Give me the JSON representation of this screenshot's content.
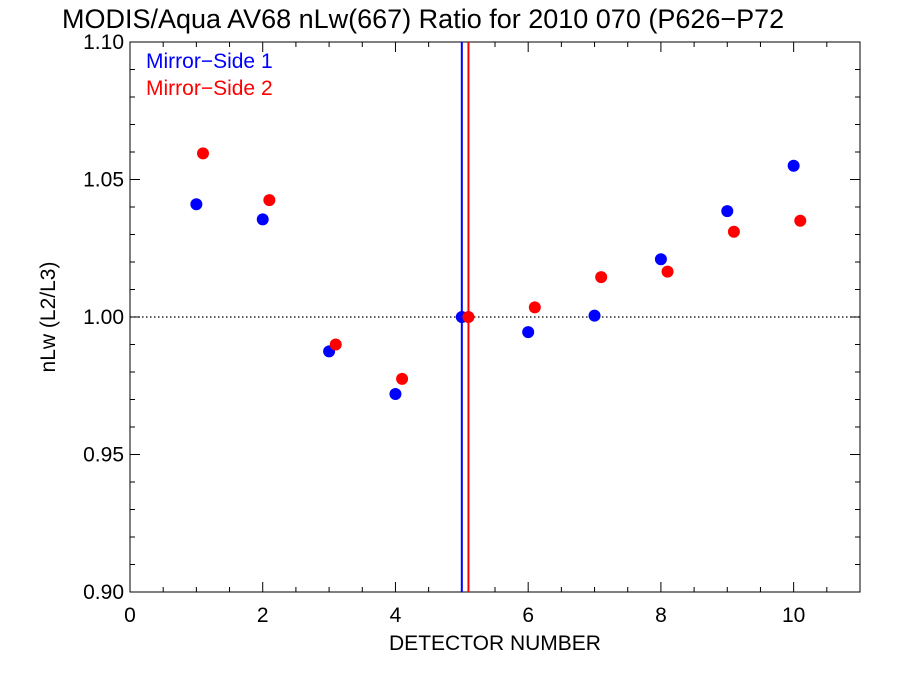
{
  "chart_data": {
    "type": "scatter",
    "title": "MODIS/Aqua AV68 nLw(667) Ratio for 2010 070 (P626−P72",
    "xlabel": "DETECTOR NUMBER",
    "ylabel": "nLw (L2/L3)",
    "xlim": [
      0,
      11
    ],
    "ylim": [
      0.9,
      1.1
    ],
    "x_ticks": [
      0,
      2,
      4,
      6,
      8,
      10
    ],
    "x_tick_labels": [
      "0",
      "2",
      "4",
      "6",
      "8",
      "10"
    ],
    "y_ticks": [
      0.9,
      0.95,
      1.0,
      1.05,
      1.1
    ],
    "y_tick_labels": [
      "0.90",
      "0.95",
      "1.00",
      "1.05",
      "1.10"
    ],
    "reference_line": {
      "y": 1.0,
      "style": "dotted"
    },
    "legend_position": "top-left",
    "series": [
      {
        "name": "Mirror−Side 1",
        "color": "#0000ff",
        "x": [
          1,
          2,
          3,
          4,
          5,
          6,
          7,
          8,
          9,
          10
        ],
        "y": [
          1.041,
          1.0355,
          0.9875,
          0.972,
          1.0,
          0.9945,
          1.0005,
          1.021,
          1.0385,
          1.055
        ],
        "vertical_line_x": 5.0
      },
      {
        "name": "Mirror−Side 2",
        "color": "#ff0000",
        "x": [
          1.1,
          2.1,
          3.1,
          4.1,
          5.1,
          6.1,
          7.1,
          8.1,
          9.1,
          10.1
        ],
        "y": [
          1.0595,
          1.0425,
          0.99,
          0.9775,
          1.0,
          1.0035,
          1.0145,
          1.0165,
          1.031,
          1.035
        ],
        "vertical_line_x": 5.1
      }
    ]
  }
}
